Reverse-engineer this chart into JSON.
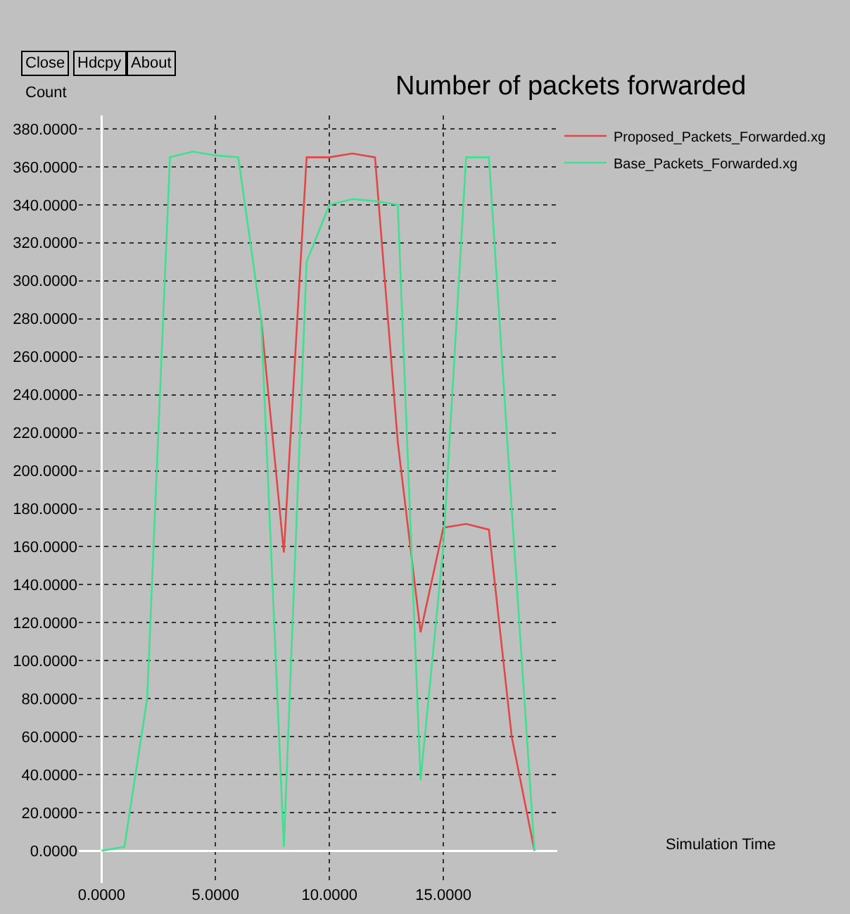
{
  "chart_data": {
    "type": "line",
    "title": "Number of packets forwarded",
    "ylabel": "Count",
    "annotations": [
      "Close",
      "Hdcpy",
      "About",
      "Simulation Time"
    ],
    "series": [
      {
        "name": "Proposed_Packets_Forwarded.xg",
        "color": "#e04848",
        "x": [
          7,
          8,
          9,
          10,
          11,
          12,
          13,
          14,
          15,
          16,
          17,
          18,
          19
        ],
        "values": [
          280,
          157,
          365,
          365,
          367,
          365,
          215,
          115,
          170,
          172,
          169,
          60,
          0
        ]
      },
      {
        "name": "Base_Packets_Forwarded.xg",
        "color": "#40e090",
        "x": [
          0,
          1,
          2,
          3,
          4,
          5,
          6,
          7,
          8,
          9,
          10,
          11,
          12,
          13,
          14,
          15,
          16,
          17,
          18,
          19
        ],
        "values": [
          0,
          2,
          80,
          365,
          368,
          366,
          365,
          280,
          2,
          310,
          340,
          343,
          342,
          340,
          37,
          160,
          365,
          365,
          180,
          0
        ]
      }
    ],
    "xlim": [
      -1,
      20
    ],
    "ylim": [
      -17,
      387
    ],
    "xticks": [
      {
        "value": 0,
        "label": "0.0000"
      },
      {
        "value": 5,
        "label": "5.0000"
      },
      {
        "value": 10,
        "label": "10.0000"
      },
      {
        "value": 15,
        "label": "15.0000"
      }
    ],
    "yticks": [
      {
        "value": 0,
        "label": "0.0000"
      },
      {
        "value": 20,
        "label": "20.0000"
      },
      {
        "value": 40,
        "label": "40.0000"
      },
      {
        "value": 60,
        "label": "60.0000"
      },
      {
        "value": 80,
        "label": "80.0000"
      },
      {
        "value": 100,
        "label": "100.0000"
      },
      {
        "value": 120,
        "label": "120.0000"
      },
      {
        "value": 140,
        "label": "140.0000"
      },
      {
        "value": 160,
        "label": "160.0000"
      },
      {
        "value": 180,
        "label": "180.0000"
      },
      {
        "value": 200,
        "label": "200.0000"
      },
      {
        "value": 220,
        "label": "220.0000"
      },
      {
        "value": 240,
        "label": "240.0000"
      },
      {
        "value": 260,
        "label": "260.0000"
      },
      {
        "value": 280,
        "label": "280.0000"
      },
      {
        "value": 300,
        "label": "300.0000"
      },
      {
        "value": 320,
        "label": "320.0000"
      },
      {
        "value": 340,
        "label": "340.0000"
      },
      {
        "value": 360,
        "label": "360.0000"
      },
      {
        "value": 380,
        "label": "380.0000"
      }
    ],
    "grid": true,
    "legend": "top right",
    "marker": "none",
    "line_style": "solid"
  }
}
